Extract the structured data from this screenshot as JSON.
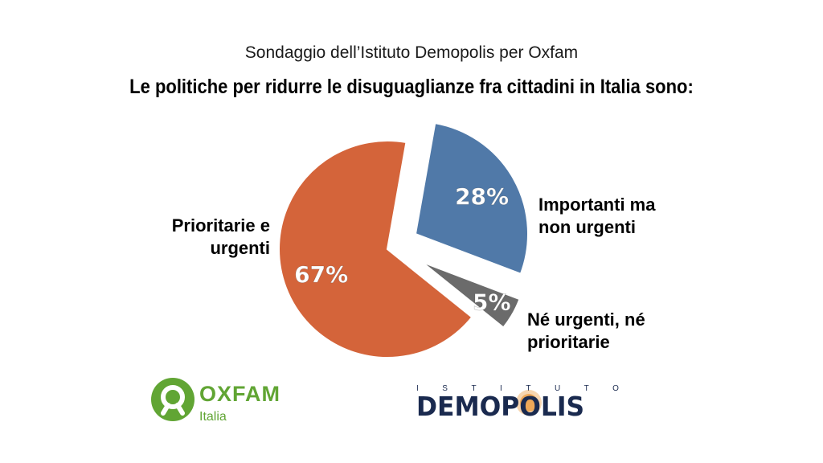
{
  "subtitle": "Sondaggio dell’Istituto Demopolis per Oxfam",
  "title": "Le politiche per ridurre le disuguaglianze fra cittadini in Italia sono:",
  "chart_data": {
    "type": "pie",
    "slices": [
      {
        "label_lines": [
          "Prioritarie e",
          "urgenti"
        ],
        "value": 67,
        "value_label": "67%",
        "color": "#d4643a"
      },
      {
        "label_lines": [
          "Importanti ma",
          "non urgenti"
        ],
        "value": 28,
        "value_label": "28%",
        "color": "#5079a8"
      },
      {
        "label_lines": [
          "Né urgenti, né",
          "prioritarie"
        ],
        "value": 5,
        "value_label": "5%",
        "color": "#6b6b6b"
      }
    ]
  },
  "logos": {
    "oxfam": {
      "name": "OXFAM",
      "sub": "Italia",
      "color": "#61a534"
    },
    "demopolis": {
      "top": "ISTITUTO",
      "main": "DEMOPOLIS",
      "color": "#1a2a4f",
      "accent": "#e8891e"
    }
  }
}
